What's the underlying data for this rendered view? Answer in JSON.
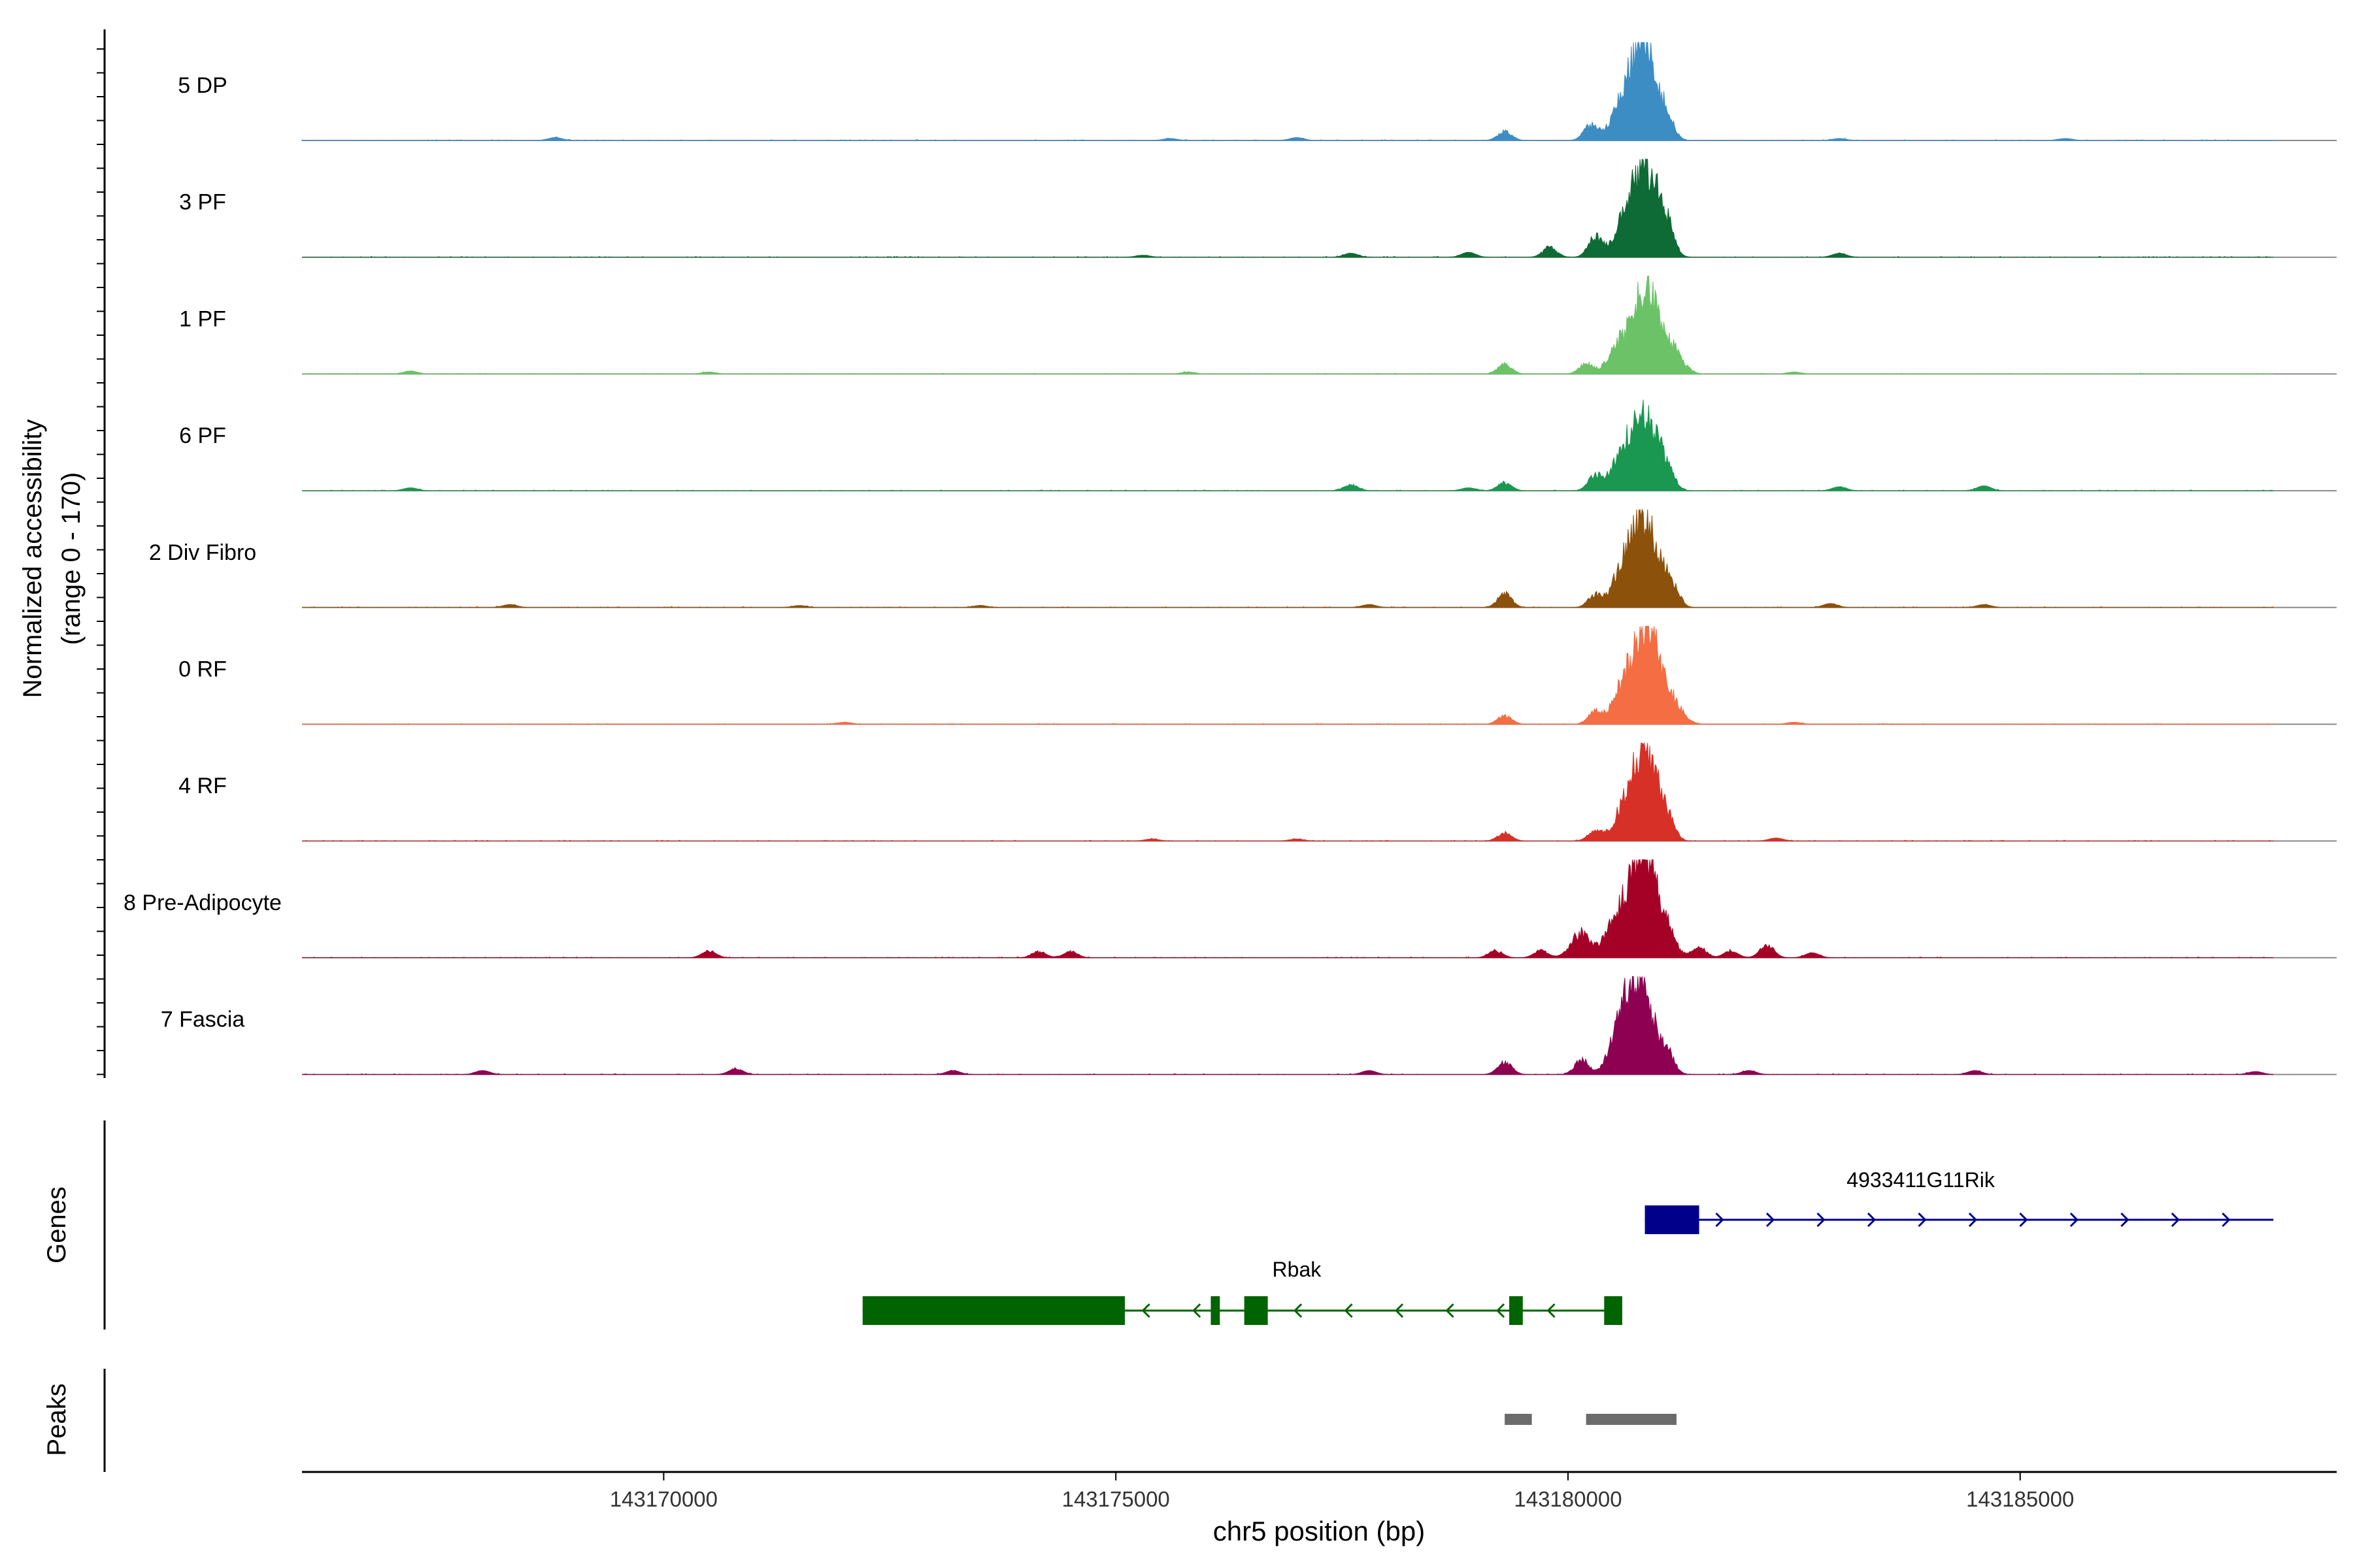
{
  "chart_data": {
    "type": "area",
    "title": "",
    "ylabel_line1": "Normalized accessibility",
    "ylabel_line2": "(range 0 - 170)",
    "xlabel": "chr5 position (bp)",
    "xlim": [
      143166000,
      143188500
    ],
    "x_ticks": [
      143170000,
      143175000,
      143180000,
      143185000
    ],
    "x_tick_labels": [
      "143170000",
      "143175000",
      "143180000",
      "143185000"
    ],
    "ylim": [
      0,
      170
    ],
    "tracks": [
      {
        "name": "5 DP",
        "color": "#3C8DC4",
        "peaks": [
          [
            143179300,
            0.09
          ],
          [
            143180250,
            0.15
          ],
          [
            143180570,
            0.3
          ],
          [
            143180750,
            0.45
          ],
          [
            143180880,
            0.8
          ],
          [
            143181100,
            0.2
          ],
          [
            143168800,
            0.03
          ],
          [
            143175600,
            0.02
          ],
          [
            143177000,
            0.03
          ],
          [
            143183000,
            0.02
          ],
          [
            143185500,
            0.02
          ]
        ]
      },
      {
        "name": "3 PF",
        "color": "#0E6B35",
        "peaks": [
          [
            143179800,
            0.1
          ],
          [
            143180300,
            0.2
          ],
          [
            143180620,
            0.35
          ],
          [
            143180800,
            0.55
          ],
          [
            143180950,
            0.55
          ],
          [
            143181100,
            0.2
          ],
          [
            143175300,
            0.02
          ],
          [
            143177600,
            0.04
          ],
          [
            143178900,
            0.05
          ],
          [
            143183000,
            0.04
          ]
        ]
      },
      {
        "name": "1 PF",
        "color": "#6CC267",
        "peaks": [
          [
            143179300,
            0.1
          ],
          [
            143180200,
            0.1
          ],
          [
            143180550,
            0.25
          ],
          [
            143180750,
            0.35
          ],
          [
            143180900,
            0.72
          ],
          [
            143181150,
            0.25
          ],
          [
            143167200,
            0.03
          ],
          [
            143170500,
            0.02
          ],
          [
            143175800,
            0.02
          ],
          [
            143182500,
            0.02
          ]
        ]
      },
      {
        "name": "6 PF",
        "color": "#1A9750",
        "peaks": [
          [
            143179300,
            0.08
          ],
          [
            143180300,
            0.15
          ],
          [
            143180580,
            0.3
          ],
          [
            143180780,
            0.55
          ],
          [
            143180950,
            0.4
          ],
          [
            143181100,
            0.15
          ],
          [
            143167200,
            0.03
          ],
          [
            143177600,
            0.06
          ],
          [
            143178900,
            0.03
          ],
          [
            143183000,
            0.04
          ],
          [
            143184600,
            0.05
          ]
        ]
      },
      {
        "name": "2 Div Fibro",
        "color": "#8C510A",
        "peaks": [
          [
            143179300,
            0.14
          ],
          [
            143180300,
            0.12
          ],
          [
            143180600,
            0.35
          ],
          [
            143180780,
            0.62
          ],
          [
            143180950,
            0.5
          ],
          [
            143181150,
            0.2
          ],
          [
            143168300,
            0.03
          ],
          [
            143171500,
            0.02
          ],
          [
            143173500,
            0.02
          ],
          [
            143177800,
            0.03
          ],
          [
            143182900,
            0.04
          ],
          [
            143184600,
            0.03
          ]
        ]
      },
      {
        "name": "0 RF",
        "color": "#F46D43",
        "peaks": [
          [
            143179300,
            0.09
          ],
          [
            143180300,
            0.12
          ],
          [
            143180600,
            0.35
          ],
          [
            143180800,
            0.55
          ],
          [
            143180930,
            0.65
          ],
          [
            143181150,
            0.22
          ],
          [
            143182500,
            0.02
          ],
          [
            143172000,
            0.02
          ]
        ]
      },
      {
        "name": "4 RF",
        "color": "#D73027",
        "peaks": [
          [
            143179300,
            0.08
          ],
          [
            143180300,
            0.1
          ],
          [
            143180620,
            0.3
          ],
          [
            143180790,
            0.4
          ],
          [
            143180900,
            0.65
          ],
          [
            143181100,
            0.2
          ],
          [
            143182300,
            0.03
          ],
          [
            143175400,
            0.02
          ],
          [
            143177000,
            0.02
          ]
        ]
      },
      {
        "name": "8 Pre-Adipocyte",
        "color": "#A50026",
        "peaks": [
          [
            143170500,
            0.07
          ],
          [
            143174150,
            0.06
          ],
          [
            143174500,
            0.06
          ],
          [
            143179200,
            0.07
          ],
          [
            143179700,
            0.07
          ],
          [
            143180150,
            0.25
          ],
          [
            143180450,
            0.2
          ],
          [
            143180650,
            0.55
          ],
          [
            143180850,
            0.85
          ],
          [
            143181050,
            0.35
          ],
          [
            143181450,
            0.1
          ],
          [
            143181800,
            0.07
          ],
          [
            143182200,
            0.13
          ],
          [
            143182700,
            0.05
          ]
        ]
      },
      {
        "name": "7 Fascia",
        "color": "#8E0152",
        "peaks": [
          [
            143179300,
            0.13
          ],
          [
            143180150,
            0.15
          ],
          [
            143180550,
            0.3
          ],
          [
            143180700,
            0.6
          ],
          [
            143180860,
            0.65
          ],
          [
            143181100,
            0.2
          ],
          [
            143168000,
            0.04
          ],
          [
            143170800,
            0.06
          ],
          [
            143173200,
            0.04
          ],
          [
            143177800,
            0.04
          ],
          [
            143182000,
            0.04
          ],
          [
            143184500,
            0.04
          ],
          [
            143187600,
            0.03
          ]
        ]
      }
    ],
    "genes": [
      {
        "name": "4933411G11Rik",
        "color": "#00008B",
        "strand": "+",
        "start": 143180850,
        "end": 143187800,
        "exons": [
          [
            143180850,
            143181450
          ]
        ]
      },
      {
        "name": "Rbak",
        "color": "#006400",
        "strand": "-",
        "start": 143172200,
        "end": 143180600,
        "exons": [
          [
            143172200,
            143175100
          ],
          [
            143176050,
            143176150
          ],
          [
            143176420,
            143176680
          ],
          [
            143179350,
            143179500
          ],
          [
            143180400,
            143180600
          ]
        ]
      }
    ],
    "peaks_track": [
      [
        143179300,
        143179600
      ],
      [
        143180200,
        143181200
      ]
    ],
    "panel_labels": {
      "genes": "Genes",
      "peaks": "Peaks"
    }
  }
}
